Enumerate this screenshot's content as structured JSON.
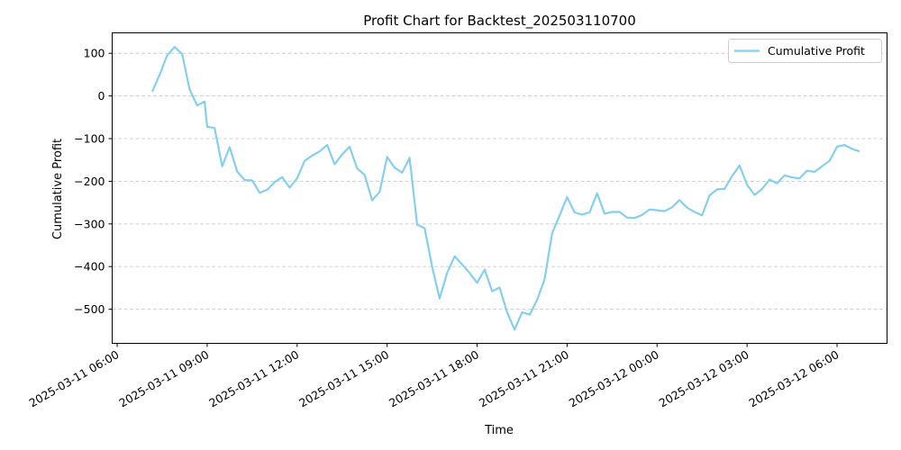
{
  "chart_data": {
    "type": "line",
    "title": "Profit Chart for Backtest_202503110700",
    "xlabel": "Time",
    "ylabel": "Cumulative Profit",
    "x_axis_type": "datetime",
    "xlim": [
      "2025-03-11 05:50",
      "2025-03-12 07:40"
    ],
    "ylim": [
      -580,
      148
    ],
    "x_ticks": [
      "2025-03-11 06:00",
      "2025-03-11 09:00",
      "2025-03-11 12:00",
      "2025-03-11 15:00",
      "2025-03-11 18:00",
      "2025-03-11 21:00",
      "2025-03-12 00:00",
      "2025-03-12 03:00",
      "2025-03-12 06:00"
    ],
    "x_tick_labels": [
      "2025-03-11 06:00",
      "2025-03-11 09:00",
      "2025-03-11 12:00",
      "2025-03-11 15:00",
      "2025-03-11 18:00",
      "2025-03-11 21:00",
      "2025-03-12 00:00",
      "2025-03-12 03:00",
      "2025-03-12 06:00"
    ],
    "y_ticks": [
      -500,
      -400,
      -300,
      -200,
      -100,
      0,
      100
    ],
    "y_tick_labels": [
      "−500",
      "−400",
      "−300",
      "−200",
      "−100",
      "0",
      "100"
    ],
    "grid": "y-dashed",
    "legend_position": "top-right",
    "series": [
      {
        "name": "Cumulative Profit",
        "color": "#87ceeb",
        "points": [
          [
            "2025-03-11 07:10",
            10
          ],
          [
            "2025-03-11 07:25",
            50
          ],
          [
            "2025-03-11 07:40",
            95
          ],
          [
            "2025-03-11 07:55",
            115
          ],
          [
            "2025-03-11 08:10",
            98
          ],
          [
            "2025-03-11 08:25",
            15
          ],
          [
            "2025-03-11 08:40",
            -22
          ],
          [
            "2025-03-11 08:55",
            -13
          ],
          [
            "2025-03-11 09:00",
            -72
          ],
          [
            "2025-03-11 09:15",
            -75
          ],
          [
            "2025-03-11 09:30",
            -165
          ],
          [
            "2025-03-11 09:45",
            -120
          ],
          [
            "2025-03-11 10:00",
            -177
          ],
          [
            "2025-03-11 10:15",
            -197
          ],
          [
            "2025-03-11 10:30",
            -198
          ],
          [
            "2025-03-11 10:45",
            -227
          ],
          [
            "2025-03-11 11:00",
            -220
          ],
          [
            "2025-03-11 11:15",
            -202
          ],
          [
            "2025-03-11 11:30",
            -190
          ],
          [
            "2025-03-11 11:45",
            -215
          ],
          [
            "2025-03-11 12:00",
            -193
          ],
          [
            "2025-03-11 12:15",
            -152
          ],
          [
            "2025-03-11 12:30",
            -140
          ],
          [
            "2025-03-11 12:45",
            -130
          ],
          [
            "2025-03-11 13:00",
            -115
          ],
          [
            "2025-03-11 13:15",
            -160
          ],
          [
            "2025-03-11 13:30",
            -137
          ],
          [
            "2025-03-11 13:45",
            -119
          ],
          [
            "2025-03-11 14:00",
            -170
          ],
          [
            "2025-03-11 14:15",
            -185
          ],
          [
            "2025-03-11 14:30",
            -245
          ],
          [
            "2025-03-11 14:45",
            -225
          ],
          [
            "2025-03-11 15:00",
            -143
          ],
          [
            "2025-03-11 15:15",
            -168
          ],
          [
            "2025-03-11 15:30",
            -180
          ],
          [
            "2025-03-11 15:45",
            -145
          ],
          [
            "2025-03-11 16:00",
            -302
          ],
          [
            "2025-03-11 16:15",
            -310
          ],
          [
            "2025-03-11 16:30",
            -400
          ],
          [
            "2025-03-11 16:45",
            -475
          ],
          [
            "2025-03-11 17:00",
            -415
          ],
          [
            "2025-03-11 17:15",
            -376
          ],
          [
            "2025-03-11 17:30",
            -395
          ],
          [
            "2025-03-11 17:45",
            -415
          ],
          [
            "2025-03-11 18:00",
            -438
          ],
          [
            "2025-03-11 18:15",
            -407
          ],
          [
            "2025-03-11 18:30",
            -458
          ],
          [
            "2025-03-11 18:45",
            -449
          ],
          [
            "2025-03-11 19:00",
            -507
          ],
          [
            "2025-03-11 19:15",
            -548
          ],
          [
            "2025-03-11 19:30",
            -507
          ],
          [
            "2025-03-11 19:45",
            -513
          ],
          [
            "2025-03-11 20:00",
            -478
          ],
          [
            "2025-03-11 20:15",
            -430
          ],
          [
            "2025-03-11 20:30",
            -322
          ],
          [
            "2025-03-11 20:45",
            -280
          ],
          [
            "2025-03-11 21:00",
            -237
          ],
          [
            "2025-03-11 21:15",
            -273
          ],
          [
            "2025-03-11 21:30",
            -278
          ],
          [
            "2025-03-11 21:45",
            -273
          ],
          [
            "2025-03-11 22:00",
            -228
          ],
          [
            "2025-03-11 22:15",
            -276
          ],
          [
            "2025-03-11 22:30",
            -272
          ],
          [
            "2025-03-11 22:45",
            -272
          ],
          [
            "2025-03-11 23:00",
            -285
          ],
          [
            "2025-03-11 23:15",
            -286
          ],
          [
            "2025-03-11 23:30",
            -279
          ],
          [
            "2025-03-11 23:45",
            -266
          ],
          [
            "2025-03-12 00:00",
            -268
          ],
          [
            "2025-03-12 00:15",
            -270
          ],
          [
            "2025-03-12 00:30",
            -261
          ],
          [
            "2025-03-12 00:45",
            -244
          ],
          [
            "2025-03-12 01:00",
            -262
          ],
          [
            "2025-03-12 01:15",
            -272
          ],
          [
            "2025-03-12 01:30",
            -280
          ],
          [
            "2025-03-12 01:45",
            -233
          ],
          [
            "2025-03-12 02:00",
            -219
          ],
          [
            "2025-03-12 02:15",
            -218
          ],
          [
            "2025-03-12 02:30",
            -188
          ],
          [
            "2025-03-12 02:45",
            -163
          ],
          [
            "2025-03-12 03:00",
            -208
          ],
          [
            "2025-03-12 03:15",
            -232
          ],
          [
            "2025-03-12 03:30",
            -218
          ],
          [
            "2025-03-12 03:45",
            -196
          ],
          [
            "2025-03-12 04:00",
            -205
          ],
          [
            "2025-03-12 04:15",
            -186
          ],
          [
            "2025-03-12 04:30",
            -191
          ],
          [
            "2025-03-12 04:45",
            -193
          ],
          [
            "2025-03-12 05:00",
            -175
          ],
          [
            "2025-03-12 05:15",
            -178
          ],
          [
            "2025-03-12 05:30",
            -165
          ],
          [
            "2025-03-12 05:45",
            -152
          ],
          [
            "2025-03-12 06:00",
            -119
          ],
          [
            "2025-03-12 06:15",
            -115
          ],
          [
            "2025-03-12 06:30",
            -124
          ],
          [
            "2025-03-12 06:45",
            -130
          ]
        ]
      }
    ]
  }
}
